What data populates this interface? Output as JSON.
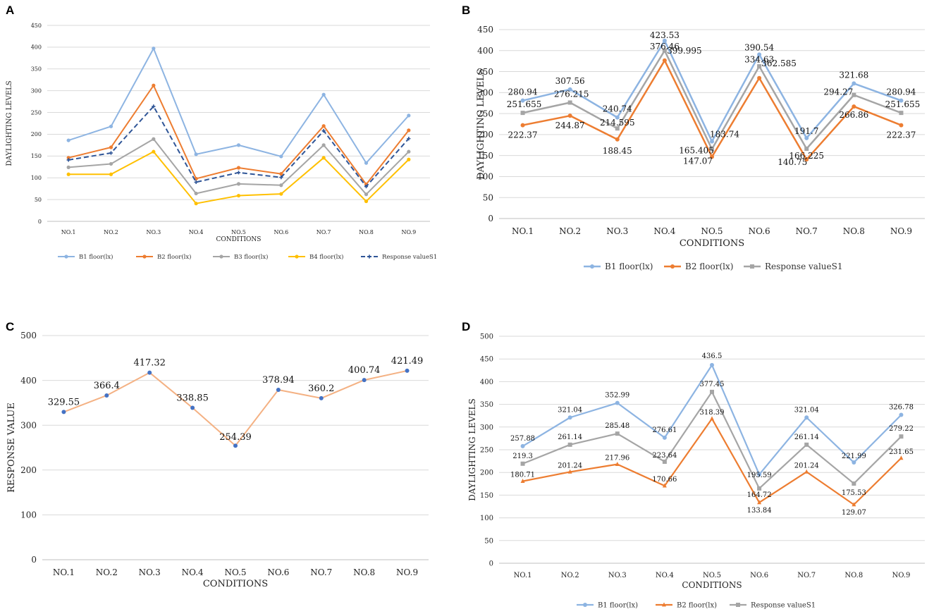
{
  "chart_data": [
    {
      "panel": "A",
      "type": "line",
      "title": "",
      "xlabel": "CONDITIONS",
      "ylabel": "DAYLIGHTING LEVELS",
      "ylim": [
        0,
        450
      ],
      "yticks": [
        0,
        50,
        100,
        150,
        200,
        250,
        300,
        350,
        400,
        450
      ],
      "categories": [
        "NO.1",
        "NO.2",
        "NO.3",
        "NO.4",
        "NO.5",
        "NO.6",
        "NO.7",
        "NO.8",
        "NO.9"
      ],
      "legend_position": "bottom",
      "series": [
        {
          "name": "B1 floor(lx)",
          "color": "#8db4e2",
          "marker": "circle",
          "dashed": false,
          "labels": false,
          "values": [
            186,
            218,
            397,
            154,
            175,
            149,
            291,
            134,
            243
          ]
        },
        {
          "name": "B2 floor(lx)",
          "color": "#ed7d31",
          "marker": "circle",
          "dashed": false,
          "labels": false,
          "values": [
            146,
            170,
            312,
            98,
            123,
            109,
            219,
            85,
            209
          ]
        },
        {
          "name": "B3 floor(lx)",
          "color": "#a5a5a5",
          "marker": "circle",
          "dashed": false,
          "labels": false,
          "values": [
            124,
            132,
            189,
            64,
            86,
            83,
            175,
            62,
            160
          ]
        },
        {
          "name": "B4 floor(lx)",
          "color": "#ffc000",
          "marker": "circle",
          "dashed": false,
          "labels": false,
          "values": [
            108,
            108,
            160,
            41,
            59,
            63,
            146,
            46,
            142
          ]
        },
        {
          "name": "Response valueS1",
          "color": "#2f5597",
          "marker": "cross",
          "dashed": true,
          "labels": false,
          "values": [
            141,
            157,
            264,
            90,
            112,
            101,
            208,
            80,
            190
          ]
        }
      ]
    },
    {
      "panel": "B",
      "type": "line",
      "title": "",
      "xlabel": "CONDITIONS",
      "ylabel": "DAYLIGHTING LEVELS",
      "ylim": [
        0,
        450
      ],
      "yticks": [
        0,
        50,
        100,
        150,
        200,
        250,
        300,
        350,
        400,
        450
      ],
      "categories": [
        "NO.1",
        "NO.2",
        "NO.3",
        "NO.4",
        "NO.5",
        "NO.6",
        "NO.7",
        "NO.8",
        "NO.9"
      ],
      "legend_position": "bottom",
      "series": [
        {
          "name": "B1 floor(lx)",
          "color": "#8db4e2",
          "marker": "circle",
          "dashed": false,
          "labels": true,
          "values": [
            280.94,
            307.56,
            240.74,
            423.53,
            183.74,
            390.54,
            191.7,
            321.68,
            280.94
          ]
        },
        {
          "name": "B2 floor(lx)",
          "color": "#ed7d31",
          "marker": "circle",
          "dashed": false,
          "labels": true,
          "values": [
            222.37,
            244.87,
            188.45,
            376.46,
            147.07,
            334.63,
            140.75,
            266.86,
            222.37
          ]
        },
        {
          "name": "Response valueS1",
          "color": "#a5a5a5",
          "marker": "square",
          "dashed": false,
          "labels": true,
          "values": [
            251.655,
            276.215,
            214.595,
            399.995,
            165.405,
            362.585,
            166.225,
            294.27,
            251.655
          ]
        }
      ]
    },
    {
      "panel": "C",
      "type": "line",
      "title": "",
      "xlabel": "CONDITIONS",
      "ylabel": "RESPONSE VALUE",
      "ylim": [
        0,
        500
      ],
      "yticks": [
        0,
        100,
        200,
        300,
        400,
        500
      ],
      "categories": [
        "NO.1",
        "NO.2",
        "NO.3",
        "NO.4",
        "NO.5",
        "NO.6",
        "NO.7",
        "NO.8",
        "NO.9"
      ],
      "legend_position": "none",
      "series": [
        {
          "name": "Response value",
          "color": "#f4b183",
          "marker_color": "#4472c4",
          "marker": "circle",
          "dashed": false,
          "labels": true,
          "values": [
            329.55,
            366.4,
            417.32,
            338.85,
            254.39,
            378.94,
            360.2,
            400.74,
            421.49
          ]
        }
      ]
    },
    {
      "panel": "D",
      "type": "line",
      "title": "",
      "xlabel": "CONDITIONS",
      "ylabel": "DAYLIGHTING LEVELS",
      "ylim": [
        0,
        500
      ],
      "yticks": [
        0,
        50,
        100,
        150,
        200,
        250,
        300,
        350,
        400,
        450,
        500
      ],
      "categories": [
        "NO.1",
        "NO.2",
        "NO.3",
        "NO.4",
        "NO.5",
        "NO.6",
        "NO.7",
        "NO.8",
        "NO.9"
      ],
      "legend_position": "bottom",
      "series": [
        {
          "name": "B1 floor(lx)",
          "color": "#8db4e2",
          "marker": "circle",
          "dashed": false,
          "labels": true,
          "values": [
            257.88,
            321.04,
            352.99,
            276.61,
            436.5,
            195.59,
            321.04,
            221.99,
            326.78
          ]
        },
        {
          "name": "B2 floor(lx)",
          "color": "#ed7d31",
          "marker": "triangle",
          "dashed": false,
          "labels": true,
          "values": [
            180.71,
            201.24,
            217.96,
            170.66,
            318.39,
            133.84,
            201.24,
            129.07,
            231.65
          ]
        },
        {
          "name": "Response valueS1",
          "color": "#a5a5a5",
          "marker": "square",
          "dashed": false,
          "labels": true,
          "values": [
            219.3,
            261.14,
            285.48,
            223.64,
            377.45,
            164.72,
            261.14,
            175.53,
            279.22
          ]
        }
      ]
    }
  ]
}
